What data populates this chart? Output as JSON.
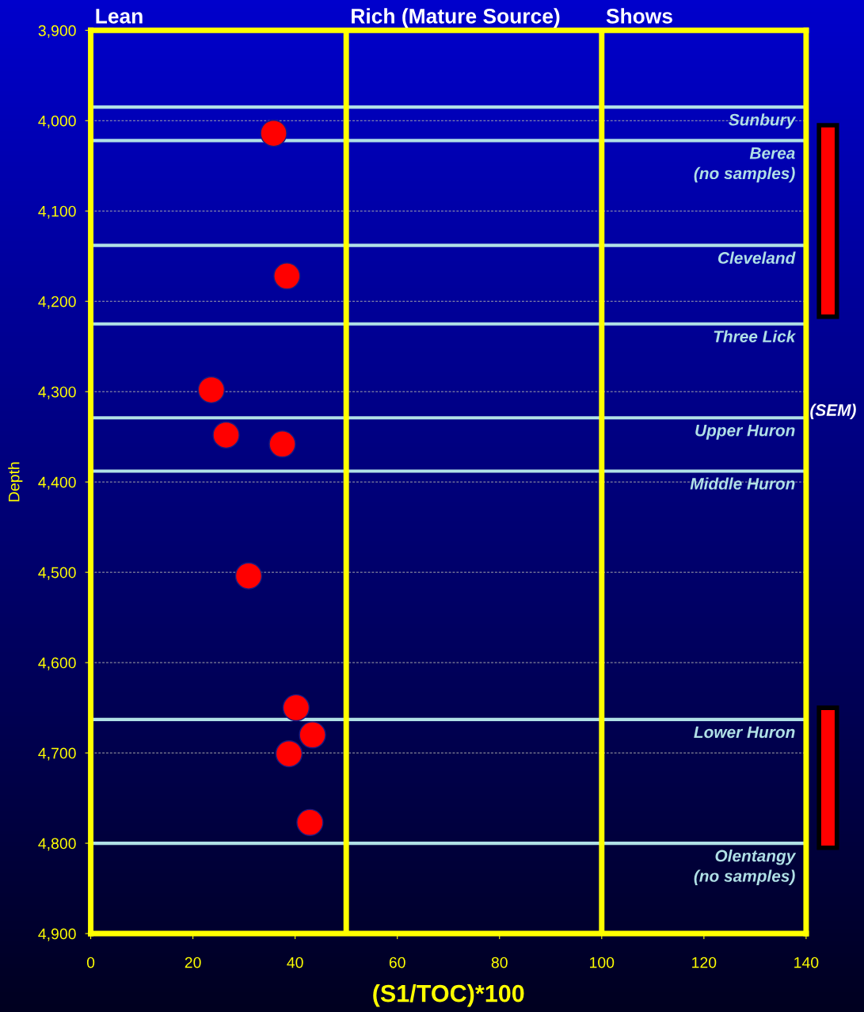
{
  "chart_data": {
    "type": "scatter",
    "xlabel": "(S1/TOC)*100",
    "ylabel": "Depth",
    "x": [
      35.8,
      38.4,
      23.6,
      26.5,
      37.5,
      30.9,
      40.2,
      43.4,
      38.8,
      42.9
    ],
    "values": [
      4014,
      4172,
      4298,
      4348,
      4358,
      4504,
      4650,
      4680,
      4701,
      4777
    ],
    "color": "#ff0000",
    "marker": "circle",
    "xlim": [
      0,
      140
    ],
    "xticks": [
      0,
      20,
      40,
      60,
      80,
      100,
      120,
      140
    ],
    "ylim": [
      4900,
      3900
    ],
    "yticks": [
      {
        "value": 3900,
        "label": "3,900"
      },
      {
        "value": 4000,
        "label": "4,000"
      },
      {
        "value": 4100,
        "label": "4,100"
      },
      {
        "value": 4200,
        "label": "4,200"
      },
      {
        "value": 4300,
        "label": "4,300"
      },
      {
        "value": 4400,
        "label": "4,400"
      },
      {
        "value": 4500,
        "label": "4,500"
      },
      {
        "value": 4600,
        "label": "4,600"
      },
      {
        "value": 4700,
        "label": "4,700"
      },
      {
        "value": 4800,
        "label": "4,800"
      },
      {
        "value": 4900,
        "label": "4,900"
      }
    ],
    "grid": "y",
    "legend": false,
    "ref_lines": [
      {
        "axis": "x",
        "value": 50,
        "color": "#ffff00"
      },
      {
        "axis": "x",
        "value": 100,
        "color": "#ffff00"
      },
      {
        "axis": "y",
        "value": 3985,
        "label": "Sunbury",
        "color": "#b0e0e6"
      },
      {
        "axis": "y",
        "value": 4022,
        "label": "Berea\n(no samples)",
        "color": "#b0e0e6"
      },
      {
        "axis": "y",
        "value": 4138,
        "label": "Cleveland",
        "color": "#b0e0e6"
      },
      {
        "axis": "y",
        "value": 4225,
        "label": "Three Lick",
        "color": "#b0e0e6"
      },
      {
        "axis": "y",
        "value": 4329,
        "label": "Upper Huron",
        "color": "#b0e0e6"
      },
      {
        "axis": "y",
        "value": 4388,
        "label": "Middle Huron",
        "color": "#b0e0e6"
      },
      {
        "axis": "y",
        "value": 4663,
        "label": "Lower Huron",
        "color": "#b0e0e6"
      },
      {
        "axis": "y",
        "value": 4800,
        "label": "Olentangy\n(no samples)",
        "color": "#b0e0e6"
      }
    ],
    "annotations": [
      "Lean",
      "Rich (Mature Source)",
      "Shows",
      "(SEM)"
    ]
  }
}
